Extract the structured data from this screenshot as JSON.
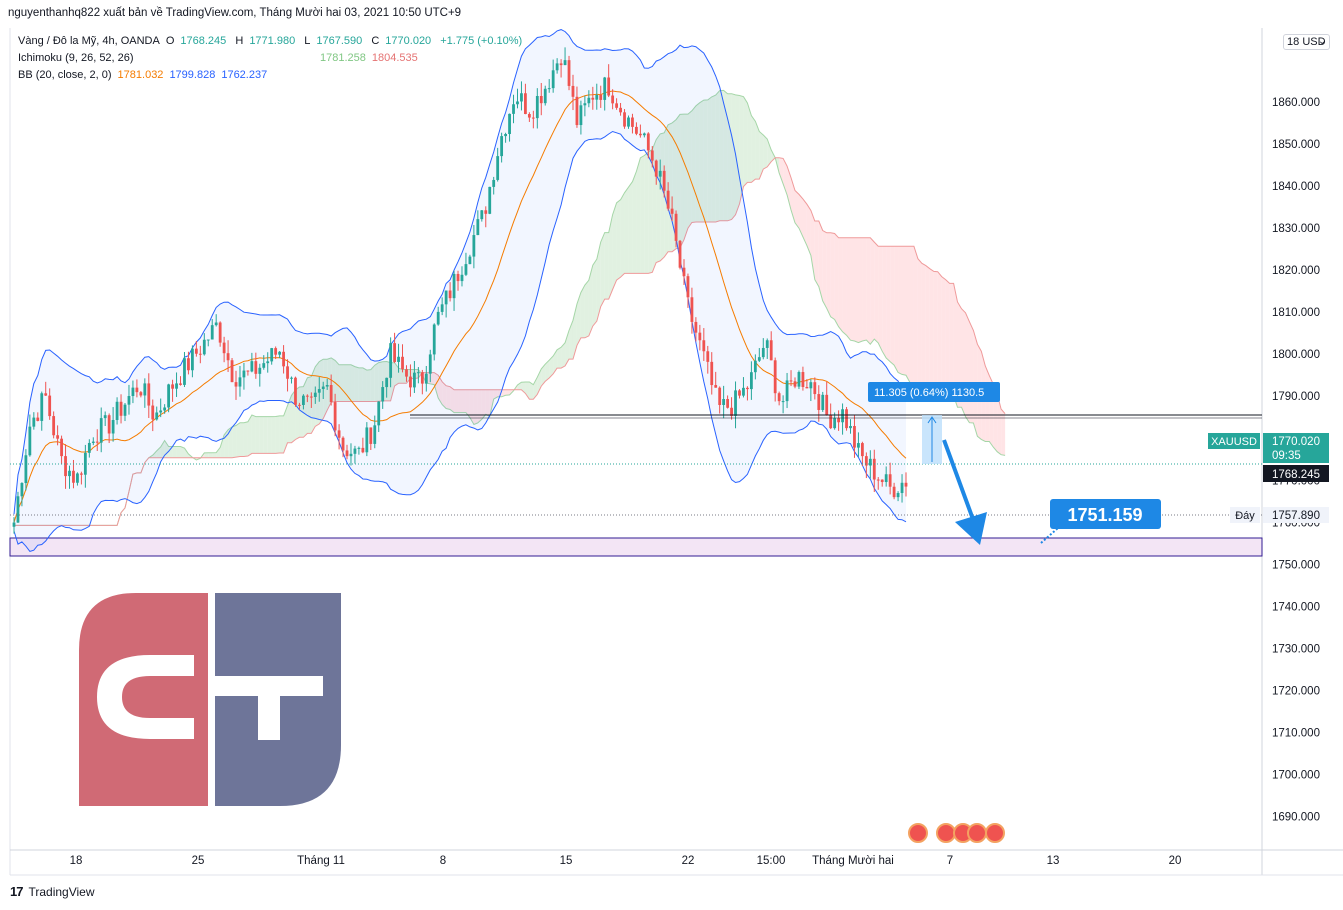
{
  "caption": "nguyenthanhq822 xuất bản về TradingView.com, Tháng Mười hai 03, 2021 10:50 UTC+9",
  "legend": {
    "symbol_line": "Vàng / Đô la Mỹ, 4h, OANDA",
    "open_label": "O",
    "open": "1768.245",
    "high_label": "H",
    "high": "1771.980",
    "low_label": "L",
    "low": "1767.590",
    "close_label": "C",
    "close": "1770.020",
    "change": "+1.775 (+0.10%)",
    "ichimoku_label": "Ichimoku (9, 26, 52, 26)",
    "ichimoku_a": "1781.258",
    "ichimoku_b": "1804.535",
    "bb_label": "BB (20, close, 2, 0)",
    "bb_basis": "1781.032",
    "bb_upper": "1799.828",
    "bb_lower": "1762.237"
  },
  "currency_tag": "USD",
  "currency_caret": "⌄",
  "top_axis_partial": "18",
  "footer_brand": "TradingView",
  "footer_logo_glyph": "17",
  "colors": {
    "up": "#26a69a",
    "down": "#ef5350",
    "bb_band": "#2962ff",
    "bb_basis": "#f57c00",
    "cloud_green": "#a5d6a7",
    "cloud_red": "#ef9a9a",
    "zone_fill": "#e1bee7",
    "callout": "#1e88e5",
    "logo_red": "#d06a75",
    "logo_blue": "#6e7599"
  },
  "chart_data": {
    "type": "candlestick",
    "symbol": "XAUUSD",
    "timeframe": "4h",
    "y_axis": {
      "ticks": [
        1680,
        1690,
        1700,
        1710,
        1720,
        1730,
        1740,
        1750,
        1760,
        1770,
        1780,
        1790,
        1800,
        1810,
        1820,
        1830,
        1840,
        1850,
        1860
      ],
      "tick_labels": [
        "1680.000",
        "1690.000",
        "1700.000",
        "1710.000",
        "1720.000",
        "1730.000",
        "1740.000",
        "1750.000",
        "1760.000",
        "1770.000",
        "1780.000",
        "1790.000",
        "1800.000",
        "1810.000",
        "1820.000",
        "1830.000",
        "1840.000",
        "1850.000",
        "1860.000"
      ],
      "ylim": [
        1678,
        1873
      ]
    },
    "x_axis": {
      "tick_labels": [
        "18",
        "25",
        "Tháng 11",
        "8",
        "15",
        "22",
        "15:00",
        "Tháng Mười hai",
        "7",
        "13",
        "20"
      ]
    },
    "last_price": {
      "symbol": "XAUUSD",
      "price": "1770.020",
      "countdown": "09:35"
    },
    "open_price_label": "1768.245",
    "low_marker": {
      "label": "Đáy",
      "price": "1757.890"
    },
    "measure_label": "11.305 (0.64%) 1130.5",
    "target_callout": "1751.159",
    "resistance_level": 1781.3,
    "support_zone": [
      1748,
      1752
    ],
    "target": 1751.159,
    "series_points": [
      [
        1760,
        1783,
        1790,
        1775,
        1770,
        1781,
        1783,
        1788,
        1793,
        1785,
        1792,
        1797,
        1802,
        1807,
        1795,
        1795,
        1798,
        1801,
        1790,
        1787,
        1792,
        1778,
        1776,
        1783,
        1800,
        1795,
        1793,
        1808,
        1816,
        1825,
        1833,
        1850,
        1862,
        1858,
        1864,
        1872,
        1855,
        1862,
        1864,
        1857,
        1852,
        1845,
        1832,
        1812,
        1800,
        1787,
        1788,
        1793,
        1803,
        1788,
        1795,
        1793,
        1785,
        1786,
        1776,
        1772,
        1768,
        1770
      ]
    ],
    "indicators": {
      "bollinger": {
        "basis_last": 1781.032,
        "upper_last": 1799.828,
        "lower_last": 1762.237
      },
      "ichimoku": {
        "span_a_last": 1781.258,
        "span_b_last": 1804.535
      }
    }
  }
}
